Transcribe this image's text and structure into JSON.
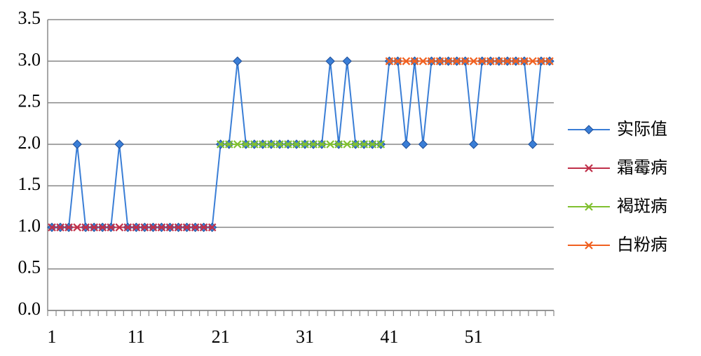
{
  "chart_data": {
    "type": "line",
    "categories": [
      "1",
      null,
      null,
      null,
      null,
      null,
      null,
      null,
      null,
      null,
      "11",
      null,
      null,
      null,
      null,
      null,
      null,
      null,
      null,
      null,
      "21",
      null,
      null,
      null,
      null,
      null,
      null,
      null,
      null,
      null,
      "31",
      null,
      null,
      null,
      null,
      null,
      null,
      null,
      null,
      null,
      "41",
      null,
      null,
      null,
      null,
      null,
      null,
      null,
      null,
      null,
      "51",
      null,
      null,
      null,
      null,
      null,
      null,
      null,
      null,
      null
    ],
    "series": [
      {
        "name": "实际值",
        "color": "#3a7ed6",
        "marker": "diamond",
        "values": [
          1,
          1,
          1,
          2,
          1,
          1,
          1,
          1,
          2,
          1,
          1,
          1,
          1,
          1,
          1,
          1,
          1,
          1,
          1,
          1,
          2,
          2,
          3,
          2,
          2,
          2,
          2,
          2,
          2,
          2,
          2,
          2,
          2,
          3,
          2,
          3,
          2,
          2,
          2,
          2,
          3,
          3,
          2,
          3,
          2,
          3,
          3,
          3,
          3,
          3,
          2,
          3,
          3,
          3,
          3,
          3,
          3,
          2,
          3,
          3
        ]
      },
      {
        "name": "霜霉病",
        "color": "#c0304a",
        "marker": "x",
        "values": [
          1,
          1,
          1,
          1,
          1,
          1,
          1,
          1,
          1,
          1,
          1,
          1,
          1,
          1,
          1,
          1,
          1,
          1,
          1,
          1,
          null,
          null,
          null,
          null,
          null,
          null,
          null,
          null,
          null,
          null,
          null,
          null,
          null,
          null,
          null,
          null,
          null,
          null,
          null,
          null,
          null,
          null,
          null,
          null,
          null,
          null,
          null,
          null,
          null,
          null,
          null,
          null,
          null,
          null,
          null,
          null,
          null,
          null,
          null,
          null
        ]
      },
      {
        "name": "褐斑病",
        "color": "#80c030",
        "marker": "x",
        "values": [
          null,
          null,
          null,
          null,
          null,
          null,
          null,
          null,
          null,
          null,
          null,
          null,
          null,
          null,
          null,
          null,
          null,
          null,
          null,
          null,
          2,
          2,
          2,
          2,
          2,
          2,
          2,
          2,
          2,
          2,
          2,
          2,
          2,
          2,
          2,
          2,
          2,
          2,
          2,
          2,
          null,
          null,
          null,
          null,
          null,
          null,
          null,
          null,
          null,
          null,
          null,
          null,
          null,
          null,
          null,
          null,
          null,
          null,
          null,
          null
        ]
      },
      {
        "name": "白粉病",
        "color": "#f06020",
        "marker": "x",
        "values": [
          null,
          null,
          null,
          null,
          null,
          null,
          null,
          null,
          null,
          null,
          null,
          null,
          null,
          null,
          null,
          null,
          null,
          null,
          null,
          null,
          null,
          null,
          null,
          null,
          null,
          null,
          null,
          null,
          null,
          null,
          null,
          null,
          null,
          null,
          null,
          null,
          null,
          null,
          null,
          null,
          3,
          3,
          3,
          3,
          3,
          3,
          3,
          3,
          3,
          3,
          3,
          3,
          3,
          3,
          3,
          3,
          3,
          3,
          3,
          3
        ]
      }
    ],
    "ylim": [
      0,
      3.5
    ],
    "yticks": [
      {
        "value": 0,
        "label": "0.0"
      },
      0.5,
      {
        "value": 1,
        "label": "1.0"
      },
      1.5,
      {
        "value": 2,
        "label": "2.0"
      },
      2.5,
      {
        "value": 3,
        "label": "3.0"
      },
      3.5
    ],
    "grid": true,
    "legend": "right"
  }
}
